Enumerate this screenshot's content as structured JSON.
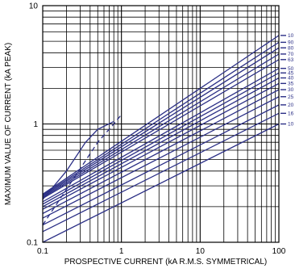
{
  "chart_data": {
    "type": "line",
    "title": "",
    "xlabel": "PROSPECTIVE CURRENT (kA R.M.S. SYMMETRICAL)",
    "ylabel": "MAXIMUM VALUE OF CURRENT (kA PEAK)",
    "x_scale": "log",
    "y_scale": "log",
    "xlim": [
      0.1,
      100
    ],
    "ylim": [
      0.1,
      10
    ],
    "x_ticks": [
      "0.1",
      "1",
      "10",
      "100"
    ],
    "y_ticks": [
      "0.1",
      "1",
      "10"
    ],
    "grid": true,
    "colors": {
      "series": "#2b2f86",
      "grid": "#000000",
      "envelope_dashed": "#2b2f86"
    },
    "ratings_label_position": "right",
    "series": [
      {
        "name": "10",
        "x": [
          0.1,
          100
        ],
        "y": [
          0.1,
          1.0
        ]
      },
      {
        "name": "16",
        "x": [
          0.1,
          100
        ],
        "y": [
          0.123,
          1.23
        ]
      },
      {
        "name": "20",
        "x": [
          0.1,
          100
        ],
        "y": [
          0.14,
          1.45
        ]
      },
      {
        "name": "25",
        "x": [
          0.1,
          100
        ],
        "y": [
          0.16,
          1.7
        ]
      },
      {
        "name": "30",
        "x": [
          0.1,
          100
        ],
        "y": [
          0.175,
          1.95
        ]
      },
      {
        "name": "35",
        "x": [
          0.1,
          100
        ],
        "y": [
          0.19,
          2.2
        ]
      },
      {
        "name": "40",
        "x": [
          0.1,
          100
        ],
        "y": [
          0.2,
          2.45
        ]
      },
      {
        "name": "45",
        "x": [
          0.1,
          100
        ],
        "y": [
          0.21,
          2.7
        ]
      },
      {
        "name": "50",
        "x": [
          0.1,
          100
        ],
        "y": [
          0.22,
          2.95
        ]
      },
      {
        "name": "63",
        "x": [
          0.1,
          100
        ],
        "y": [
          0.235,
          3.5
        ]
      },
      {
        "name": "70",
        "x": [
          0.1,
          100
        ],
        "y": [
          0.24,
          3.9
        ]
      },
      {
        "name": "80",
        "x": [
          0.1,
          100
        ],
        "y": [
          0.245,
          4.4
        ]
      },
      {
        "name": "90",
        "x": [
          0.1,
          100
        ],
        "y": [
          0.25,
          4.9
        ]
      },
      {
        "name": "10",
        "x": [
          0.1,
          100
        ],
        "y": [
          0.255,
          5.6
        ]
      }
    ],
    "envelope_solid": {
      "x": [
        0.1,
        0.2,
        0.35,
        0.5,
        0.8
      ],
      "y": [
        0.23,
        0.4,
        0.7,
        0.9,
        1.05
      ]
    },
    "envelope_dashed": {
      "x": [
        0.1,
        0.2,
        0.3,
        0.5,
        0.8,
        1.0
      ],
      "y": [
        0.14,
        0.28,
        0.42,
        0.7,
        1.0,
        1.2
      ]
    }
  }
}
